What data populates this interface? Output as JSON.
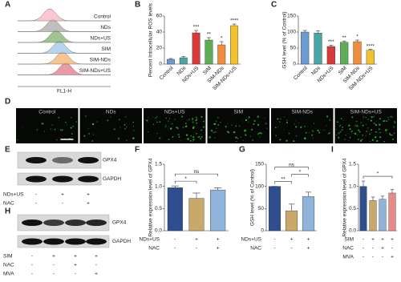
{
  "panel_labels": [
    "A",
    "B",
    "C",
    "D",
    "E",
    "F",
    "G",
    "H",
    "I"
  ],
  "flow": {
    "labels": [
      "Control",
      "NDs",
      "NDs+US",
      "SIM",
      "SIM-NDs",
      "SIM-NDs+US"
    ],
    "colors": [
      "#f4b6c2",
      "#a9a9a9",
      "#7fb069",
      "#9fc5e8",
      "#f6b26b",
      "#e07a8a"
    ],
    "x_label": "FL1-H"
  },
  "microscopy": {
    "labels": [
      "Control",
      "NDs",
      "NDs+US",
      "SIM",
      "SIM-NDs",
      "SIM-NDs+US"
    ]
  },
  "blots": [
    {
      "bands": [
        "GPX4",
        "GAPDH"
      ],
      "rows": [
        {
          "name": "NDs+US",
          "signs": [
            "-",
            "+",
            "+"
          ]
        },
        {
          "name": "NAC",
          "signs": [
            "-",
            "-",
            "+"
          ]
        }
      ]
    },
    {
      "bands": [
        "GPX4",
        "GAPDH"
      ],
      "rows": [
        {
          "name": "SIM",
          "signs": [
            "-",
            "+",
            "+",
            "+"
          ]
        },
        {
          "name": "NAC",
          "signs": [
            "-",
            "-",
            "+",
            "-"
          ]
        },
        {
          "name": "MVA",
          "signs": [
            "-",
            "-",
            "-",
            "+"
          ]
        }
      ]
    }
  ],
  "chart_data": [
    {
      "type": "bar",
      "y_label": "Percent Intracellular ROS levels",
      "categories": [
        "Control",
        "NDs",
        "NDs+US",
        "SIM",
        "SIM-NDs",
        "SIM-NDs+US"
      ],
      "values": [
        6,
        8,
        39,
        30,
        24,
        48
      ],
      "errors": [
        1,
        1.5,
        3,
        3,
        4,
        2
      ],
      "sig_labels": [
        null,
        null,
        "***",
        "**",
        "*",
        "****"
      ],
      "colors": [
        "#6b9bd1",
        "#4aa6a6",
        "#d63a3a",
        "#5fae57",
        "#f08c3a",
        "#f2c12e"
      ],
      "ylim": [
        0,
        60
      ],
      "yticks": [
        0,
        20,
        40,
        60
      ]
    },
    {
      "type": "bar",
      "y_label": "GSH level (% of Control)",
      "categories": [
        "Control",
        "NDs",
        "NDs+US",
        "SIM",
        "SIM-NDs",
        "SIM-NDs+US"
      ],
      "values": [
        100,
        97,
        55,
        68,
        70,
        43
      ],
      "errors": [
        5,
        7,
        4,
        4,
        5,
        3
      ],
      "sig_labels": [
        null,
        null,
        "***",
        "**",
        "*",
        "****"
      ],
      "colors": [
        "#6b9bd1",
        "#4aa6a6",
        "#d63a3a",
        "#5fae57",
        "#f08c3a",
        "#f2c12e"
      ],
      "ylim": [
        0,
        150
      ],
      "yticks": [
        0,
        50,
        100,
        150
      ]
    },
    {
      "type": "bar",
      "y_label": "Relative expression level of GPX4",
      "values": [
        0.97,
        0.73,
        0.92
      ],
      "errors": [
        0.04,
        0.12,
        0.05
      ],
      "colors": [
        "#2e4e8f",
        "#c8a96a",
        "#8fb3d9"
      ],
      "conditions": [
        {
          "name": "NDs+US",
          "signs": [
            "-",
            "+",
            "+"
          ]
        },
        {
          "name": "NAC",
          "signs": [
            "-",
            "-",
            "+"
          ]
        }
      ],
      "comparisons": [
        {
          "between": [
            0,
            1
          ],
          "label": "*"
        },
        {
          "between": [
            0,
            2
          ],
          "label": "ns"
        }
      ],
      "ylim": [
        0,
        1.5
      ],
      "yticks": [
        {
          "value": 0,
          "label": "0.0"
        },
        0.5,
        {
          "value": 1,
          "label": "1.0"
        },
        1.5
      ]
    },
    {
      "type": "bar",
      "y_label": "GSH level (% of Control)",
      "values": [
        100,
        45,
        77
      ],
      "errors": [
        0,
        15,
        10
      ],
      "colors": [
        "#2e4e8f",
        "#c8a96a",
        "#8fb3d9"
      ],
      "conditions": [
        {
          "name": "NDs+US",
          "signs": [
            "-",
            "+",
            "+"
          ]
        },
        {
          "name": "NAC",
          "signs": [
            "-",
            "-",
            "+"
          ]
        }
      ],
      "comparisons": [
        {
          "between": [
            0,
            1
          ],
          "label": "**"
        },
        {
          "between": [
            1,
            2
          ],
          "label": "*"
        },
        {
          "between": [
            0,
            2
          ],
          "label": "ns"
        }
      ],
      "ylim": [
        0,
        150
      ],
      "yticks": [
        0,
        50,
        100,
        150
      ]
    },
    {
      "type": "bar",
      "y_label": "Relative expression level of GPX4",
      "values": [
        1.0,
        0.68,
        0.71,
        0.85
      ],
      "errors": [
        0.12,
        0.08,
        0.07,
        0.08
      ],
      "colors": [
        "#2e4e8f",
        "#c8a96a",
        "#8fb3d9",
        "#e88a8a"
      ],
      "conditions": [
        {
          "name": "SIM",
          "signs": [
            "-",
            "+",
            "+",
            "+"
          ]
        },
        {
          "name": "NAC",
          "signs": [
            "-",
            "-",
            "+",
            "-"
          ]
        },
        {
          "name": "MVA",
          "signs": [
            "-",
            "-",
            "-",
            "+"
          ]
        }
      ],
      "comparisons": [
        {
          "between": [
            0,
            3
          ],
          "label": "*"
        }
      ],
      "ylim": [
        0,
        1.5
      ],
      "yticks": [
        {
          "value": 0,
          "label": "0.0"
        },
        0.5,
        {
          "value": 1,
          "label": "1.0"
        },
        1.5
      ]
    }
  ]
}
